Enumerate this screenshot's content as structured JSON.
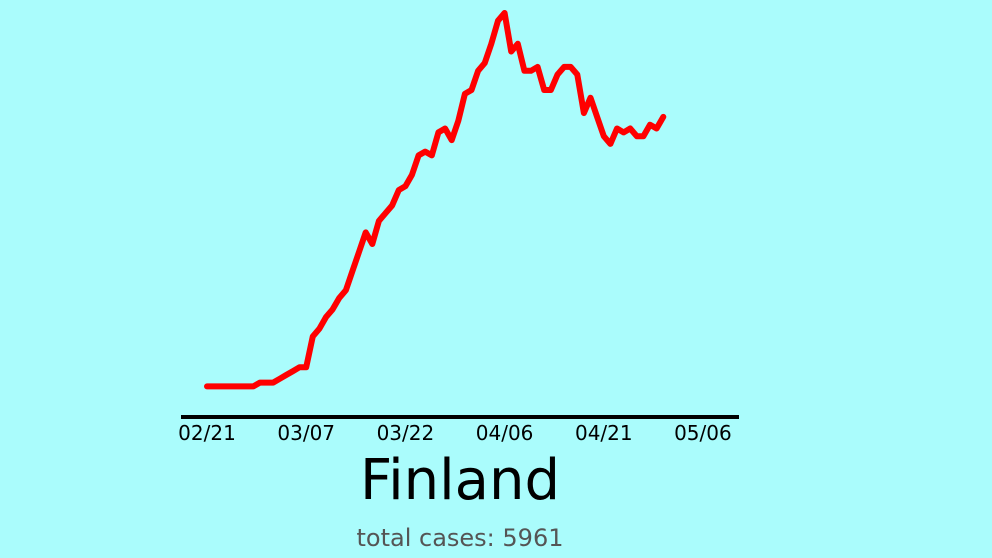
{
  "chart_data": {
    "type": "line",
    "title": "Finland",
    "subtitle": "total cases: 5961",
    "x_tick_labels": [
      "02/21",
      "03/07",
      "03/22",
      "04/06",
      "04/21",
      "05/06"
    ],
    "x_tick_day_index": [
      0,
      15,
      30,
      45,
      60,
      75
    ],
    "xlim_day_index": [
      0,
      80
    ],
    "y_axis_labels": "none",
    "ylim": [
      0,
      100
    ],
    "y_unit_note": "relative scale (no y-axis labels printed)",
    "series": [
      {
        "color": "#ff0000",
        "values": [
          3,
          3,
          3,
          3,
          3,
          3,
          3,
          3,
          4,
          4,
          4,
          5,
          6,
          7,
          8,
          8,
          16,
          18,
          21,
          23,
          26,
          28,
          33,
          38,
          43,
          40,
          46,
          48,
          50,
          54,
          55,
          58,
          63,
          64,
          63,
          69,
          70,
          67,
          72,
          79,
          80,
          85,
          87,
          92,
          98,
          100,
          90,
          92,
          85,
          85,
          86,
          80,
          80,
          84,
          86,
          86,
          84,
          74,
          78,
          73,
          68,
          66,
          70,
          69,
          70,
          68,
          68,
          71,
          70,
          73
        ]
      }
    ],
    "grid": false,
    "legend": "none"
  },
  "style": {
    "background": "#aafcfc",
    "line_color": "#ff0000",
    "axis_color": "#000000",
    "subtitle_color": "#555555"
  }
}
